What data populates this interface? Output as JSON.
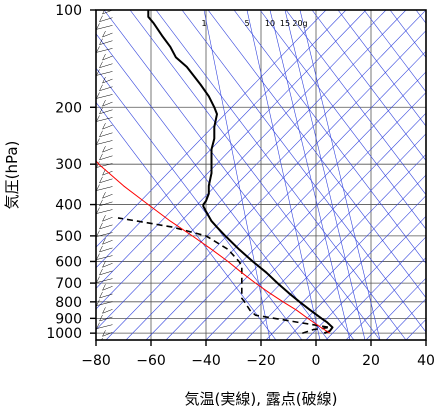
{
  "chart_data": {
    "type": "line",
    "xlabel": "気温(実線), 露点(破線)",
    "ylabel": "気圧(hPa)",
    "xlim": [
      -80,
      40
    ],
    "ylim": [
      1050,
      100
    ],
    "yscale": "log",
    "grid": true,
    "x_ticks": [
      "−80",
      "−60",
      "−40",
      "−20",
      "0",
      "20",
      "40"
    ],
    "x_tick_values": [
      -80,
      -60,
      -40,
      -20,
      0,
      20,
      40
    ],
    "y_ticks": [
      "100",
      "200",
      "300",
      "400",
      "500",
      "600",
      "700",
      "800",
      "900",
      "1000"
    ],
    "y_tick_values": [
      100,
      200,
      300,
      400,
      500,
      600,
      700,
      800,
      900,
      1000
    ],
    "mixing_ratio_labels": [
      "1",
      "5",
      "10",
      "15",
      "20g"
    ],
    "mixing_ratio_values": [
      1,
      5,
      10,
      15,
      20
    ],
    "colors": {
      "temperature": "#000000",
      "dewpoint": "#000000",
      "parcel": "#ff0000",
      "adiabats": "#3344dd"
    },
    "series": [
      {
        "line": "solid",
        "pressure": [
          1000,
          985,
          960,
          925,
          900,
          850,
          800,
          750,
          700,
          650,
          600,
          550,
          500,
          470,
          450,
          420,
          405,
          400,
          390,
          370,
          350,
          320,
          300,
          270,
          250,
          230,
          210,
          200,
          185,
          170,
          150,
          140,
          130,
          120,
          110,
          105,
          100
        ],
        "values": [
          3,
          5,
          6,
          4,
          2,
          -2,
          -6,
          -10,
          -14,
          -18,
          -23,
          -28,
          -33,
          -36,
          -38,
          -40,
          -41,
          -41,
          -40,
          -39,
          -39,
          -38,
          -38,
          -38,
          -37,
          -37,
          -36,
          -37,
          -39,
          -42,
          -47,
          -51,
          -53,
          -56,
          -59,
          -61,
          -61
        ]
      },
      {
        "line": "dashed",
        "pressure": [
          1000,
          975,
          960,
          930,
          900,
          880,
          850,
          800,
          780,
          750,
          700,
          680,
          650,
          620,
          600,
          550,
          500,
          470,
          450,
          440
        ],
        "values": [
          -5,
          -1,
          5,
          -5,
          -15,
          -22,
          -24,
          -26,
          -27,
          -27,
          -27,
          -27,
          -27,
          -27,
          -28,
          -32,
          -40,
          -52,
          -65,
          -72
        ]
      },
      {
        "line": "solid",
        "pressure": [
          1000,
          950,
          900,
          850,
          800,
          750,
          700,
          650,
          600,
          550,
          500,
          450,
          400,
          350,
          300,
          280
        ],
        "values": [
          5,
          1,
          -3,
          -7,
          -12,
          -17,
          -22,
          -27,
          -32,
          -38,
          -45,
          -53,
          -61,
          -70,
          -79,
          -82
        ]
      }
    ]
  }
}
